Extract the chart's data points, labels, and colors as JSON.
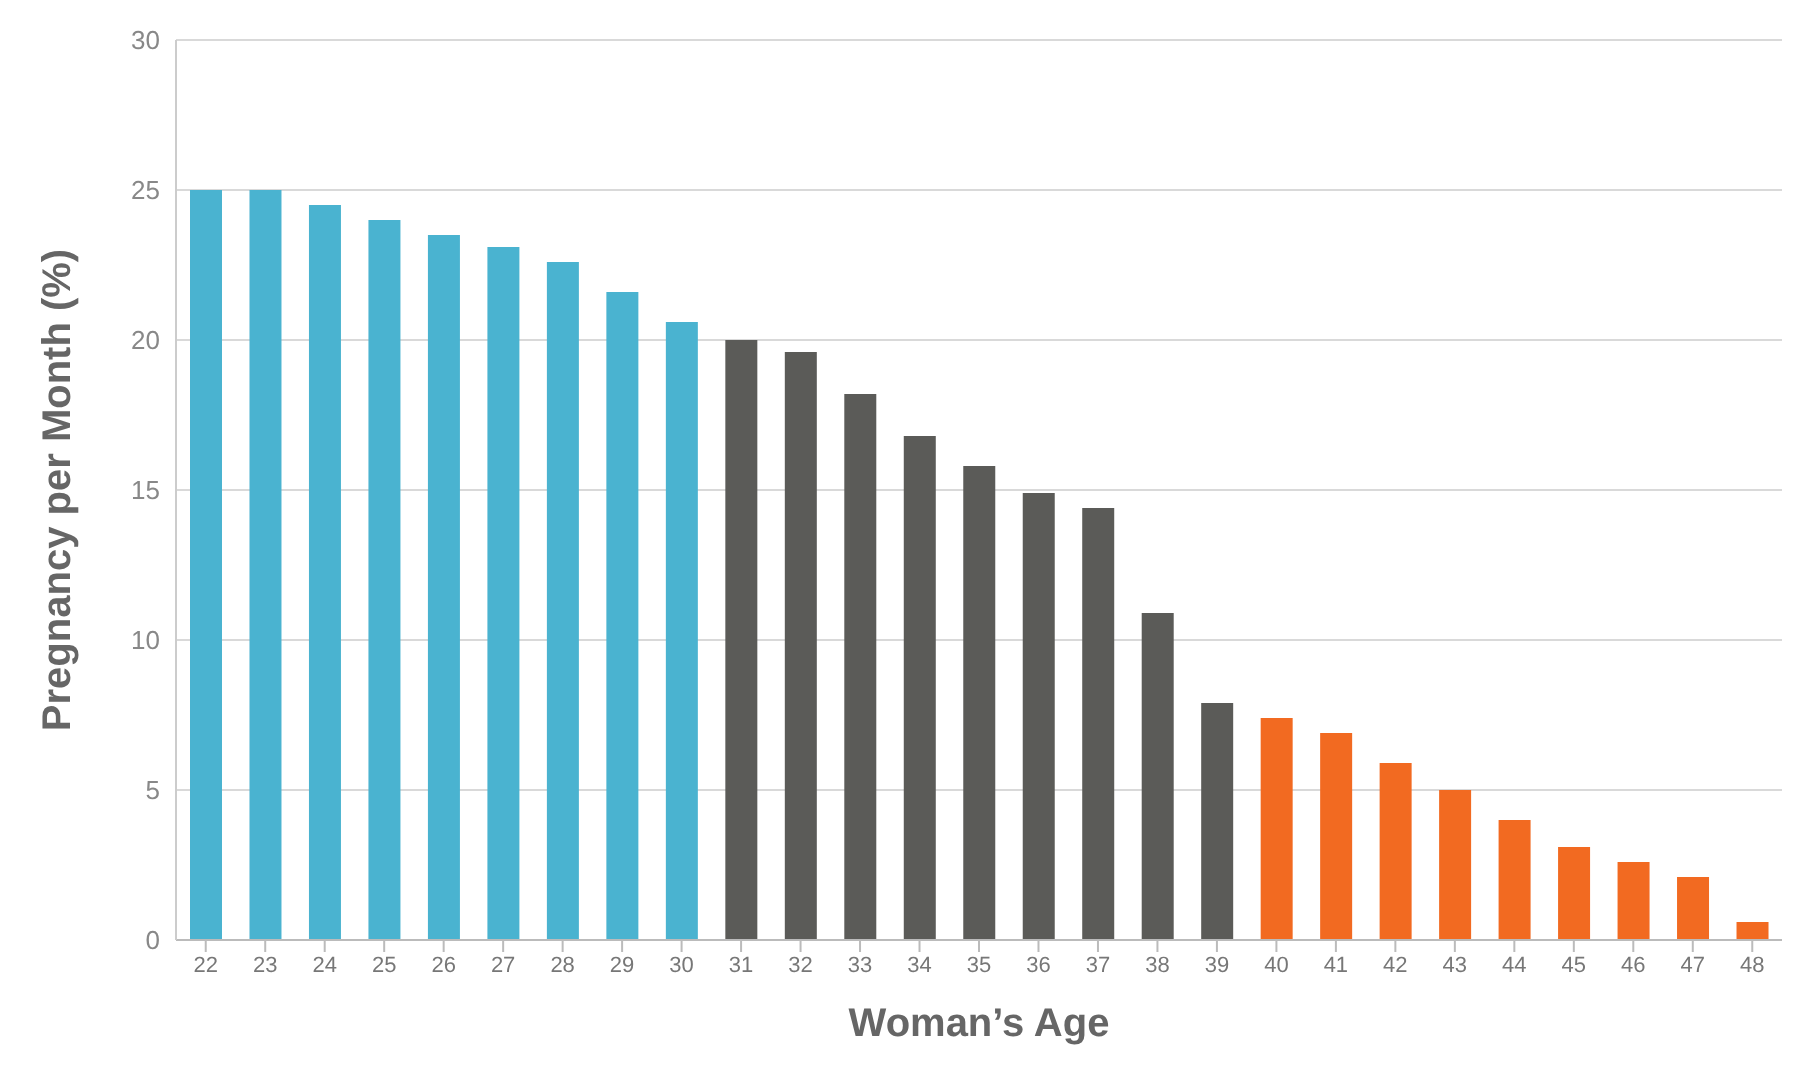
{
  "chart_data": {
    "type": "bar",
    "xlabel": "Woman’s Age",
    "ylabel": "Pregnancy per Month (%)",
    "categories": [
      "22",
      "23",
      "24",
      "25",
      "26",
      "27",
      "28",
      "29",
      "30",
      "31",
      "32",
      "33",
      "34",
      "35",
      "36",
      "37",
      "38",
      "39",
      "40",
      "41",
      "42",
      "43",
      "44",
      "45",
      "46",
      "47",
      "48"
    ],
    "values": [
      25,
      25,
      24.5,
      24,
      23.5,
      23.1,
      22.6,
      21.6,
      20.6,
      20,
      19.6,
      18.2,
      16.8,
      15.8,
      14.9,
      14.4,
      10.9,
      7.9,
      7.4,
      6.9,
      5.9,
      5,
      4,
      3.1,
      2.6,
      2.1,
      0.6
    ],
    "colors": [
      "#4ab3d0",
      "#4ab3d0",
      "#4ab3d0",
      "#4ab3d0",
      "#4ab3d0",
      "#4ab3d0",
      "#4ab3d0",
      "#4ab3d0",
      "#4ab3d0",
      "#5b5b58",
      "#5b5b58",
      "#5b5b58",
      "#5b5b58",
      "#5b5b58",
      "#5b5b58",
      "#5b5b58",
      "#5b5b58",
      "#5b5b58",
      "#f26a21",
      "#f26a21",
      "#f26a21",
      "#f26a21",
      "#f26a21",
      "#f26a21",
      "#f26a21",
      "#f26a21",
      "#f26a21"
    ],
    "ylim": [
      0,
      30
    ],
    "yticks": [
      0,
      5,
      10,
      15,
      20,
      25,
      30
    ],
    "grid": "y"
  }
}
